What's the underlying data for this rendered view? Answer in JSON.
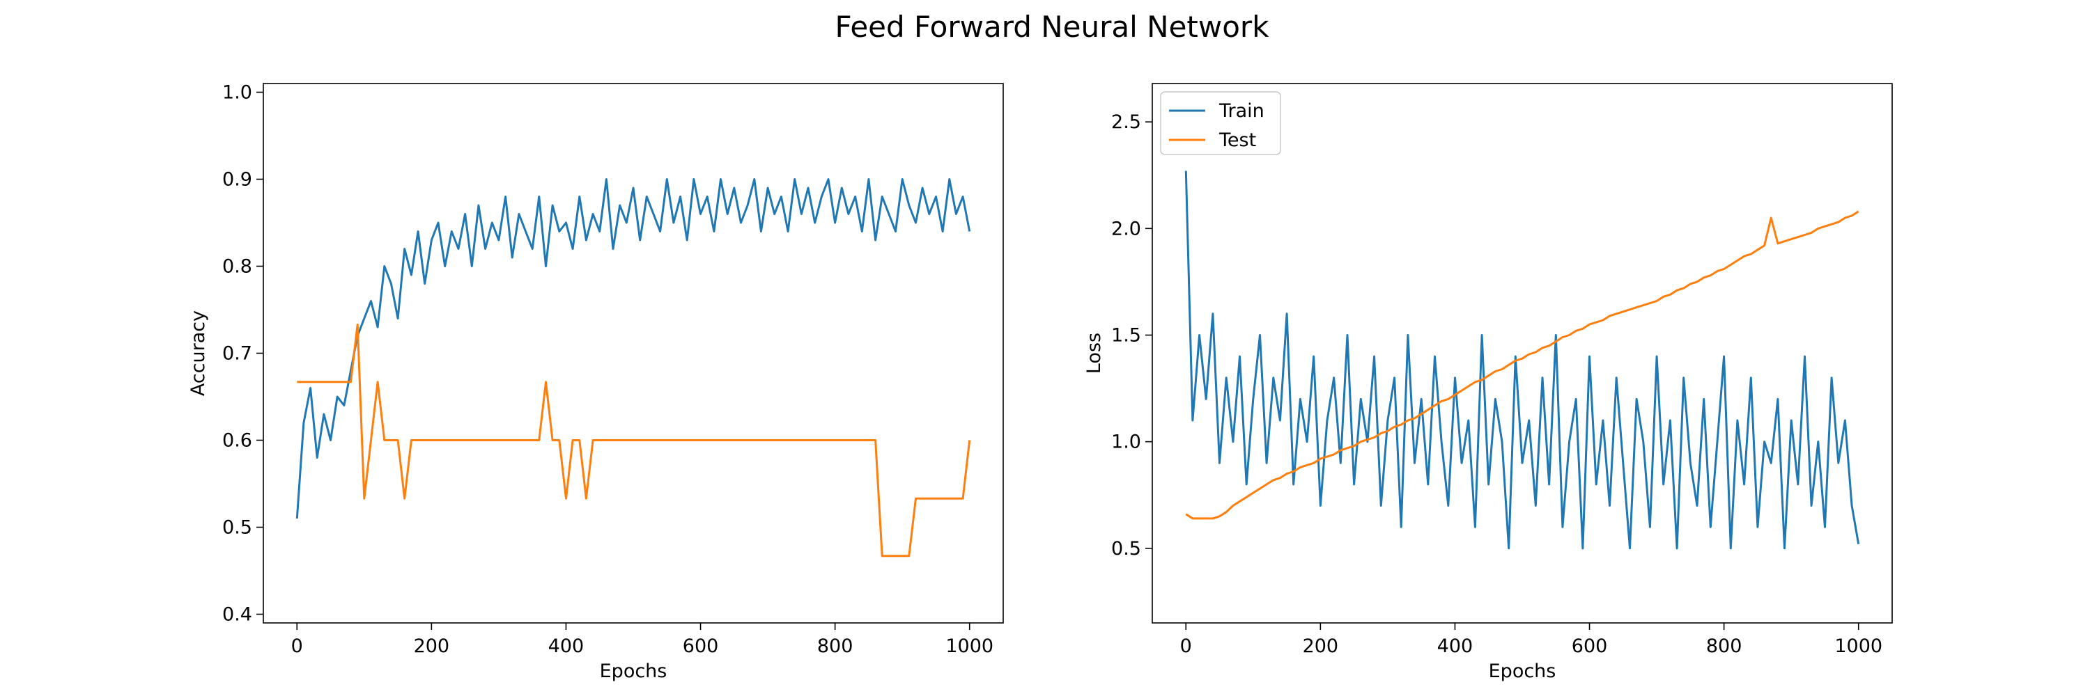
{
  "figure": {
    "title": "Feed Forward Neural Network"
  },
  "colors": {
    "train": "#1f77b4",
    "test": "#ff7f0e",
    "axes": "#000000",
    "legend_border": "#cccccc"
  },
  "chart_data": [
    {
      "type": "line",
      "title": "",
      "xlabel": "Epochs",
      "ylabel": "Accuracy",
      "xlim": [
        -50,
        1050
      ],
      "ylim": [
        0.39,
        1.01
      ],
      "xticks": [
        0,
        200,
        400,
        600,
        800,
        1000
      ],
      "yticks": [
        0.4,
        0.5,
        0.6,
        0.7,
        0.8,
        0.9,
        1.0
      ],
      "xtick_labels": [
        "0",
        "200",
        "400",
        "600",
        "800",
        "1000"
      ],
      "ytick_labels": [
        "0.4",
        "0.5",
        "0.6",
        "0.7",
        "0.8",
        "0.9",
        "1.0"
      ],
      "grid": false,
      "legend": null,
      "series": [
        {
          "color": "#1f77b4",
          "x": [
            0,
            10,
            20,
            30,
            40,
            50,
            60,
            70,
            80,
            90,
            100,
            110,
            120,
            130,
            140,
            150,
            160,
            170,
            180,
            190,
            200,
            210,
            220,
            230,
            240,
            250,
            260,
            270,
            280,
            290,
            300,
            310,
            320,
            330,
            340,
            350,
            360,
            370,
            380,
            390,
            400,
            410,
            420,
            430,
            440,
            450,
            460,
            470,
            480,
            490,
            500,
            510,
            520,
            530,
            540,
            550,
            560,
            570,
            580,
            590,
            600,
            610,
            620,
            630,
            640,
            650,
            660,
            670,
            680,
            690,
            700,
            710,
            720,
            730,
            740,
            750,
            760,
            770,
            780,
            790,
            800,
            810,
            820,
            830,
            840,
            850,
            860,
            870,
            880,
            890,
            900,
            910,
            920,
            930,
            940,
            950,
            960,
            970,
            980,
            990,
            1000
          ],
          "y": [
            0.51,
            0.62,
            0.66,
            0.58,
            0.63,
            0.6,
            0.65,
            0.64,
            0.68,
            0.72,
            0.74,
            0.76,
            0.73,
            0.8,
            0.78,
            0.74,
            0.82,
            0.79,
            0.84,
            0.78,
            0.83,
            0.85,
            0.8,
            0.84,
            0.82,
            0.86,
            0.8,
            0.87,
            0.82,
            0.85,
            0.83,
            0.88,
            0.81,
            0.86,
            0.84,
            0.82,
            0.88,
            0.8,
            0.87,
            0.84,
            0.85,
            0.82,
            0.88,
            0.83,
            0.86,
            0.84,
            0.9,
            0.82,
            0.87,
            0.85,
            0.89,
            0.83,
            0.88,
            0.86,
            0.84,
            0.9,
            0.85,
            0.88,
            0.83,
            0.9,
            0.86,
            0.88,
            0.84,
            0.9,
            0.86,
            0.89,
            0.85,
            0.87,
            0.9,
            0.84,
            0.89,
            0.86,
            0.88,
            0.84,
            0.9,
            0.86,
            0.89,
            0.85,
            0.88,
            0.9,
            0.85,
            0.89,
            0.86,
            0.88,
            0.84,
            0.9,
            0.83,
            0.88,
            0.86,
            0.84,
            0.9,
            0.87,
            0.85,
            0.89,
            0.86,
            0.88,
            0.84,
            0.9,
            0.86,
            0.88,
            0.84
          ]
        },
        {
          "color": "#ff7f0e",
          "x": [
            0,
            10,
            20,
            30,
            40,
            50,
            60,
            70,
            80,
            90,
            100,
            110,
            120,
            130,
            140,
            150,
            160,
            170,
            180,
            190,
            200,
            210,
            220,
            230,
            240,
            250,
            260,
            270,
            280,
            290,
            300,
            310,
            320,
            330,
            340,
            350,
            360,
            370,
            380,
            390,
            400,
            410,
            420,
            430,
            440,
            450,
            460,
            470,
            480,
            490,
            500,
            510,
            520,
            530,
            540,
            550,
            560,
            570,
            580,
            590,
            600,
            610,
            620,
            630,
            640,
            650,
            660,
            670,
            680,
            690,
            700,
            710,
            720,
            730,
            740,
            750,
            760,
            770,
            780,
            790,
            800,
            810,
            820,
            830,
            840,
            850,
            860,
            870,
            880,
            890,
            900,
            910,
            920,
            930,
            940,
            950,
            960,
            970,
            980,
            990,
            1000
          ],
          "y": [
            0.667,
            0.667,
            0.667,
            0.667,
            0.667,
            0.667,
            0.667,
            0.667,
            0.667,
            0.733,
            0.533,
            0.6,
            0.667,
            0.6,
            0.6,
            0.6,
            0.533,
            0.6,
            0.6,
            0.6,
            0.6,
            0.6,
            0.6,
            0.6,
            0.6,
            0.6,
            0.6,
            0.6,
            0.6,
            0.6,
            0.6,
            0.6,
            0.6,
            0.6,
            0.6,
            0.6,
            0.6,
            0.667,
            0.6,
            0.6,
            0.533,
            0.6,
            0.6,
            0.533,
            0.6,
            0.6,
            0.6,
            0.6,
            0.6,
            0.6,
            0.6,
            0.6,
            0.6,
            0.6,
            0.6,
            0.6,
            0.6,
            0.6,
            0.6,
            0.6,
            0.6,
            0.6,
            0.6,
            0.6,
            0.6,
            0.6,
            0.6,
            0.6,
            0.6,
            0.6,
            0.6,
            0.6,
            0.6,
            0.6,
            0.6,
            0.6,
            0.6,
            0.6,
            0.6,
            0.6,
            0.6,
            0.6,
            0.6,
            0.6,
            0.6,
            0.6,
            0.6,
            0.467,
            0.467,
            0.467,
            0.467,
            0.467,
            0.533,
            0.533,
            0.533,
            0.533,
            0.533,
            0.533,
            0.533,
            0.533,
            0.6
          ]
        }
      ]
    },
    {
      "type": "line",
      "title": "",
      "xlabel": "Epochs",
      "ylabel": "Loss",
      "xlim": [
        -50,
        1050
      ],
      "ylim": [
        0.15,
        2.68
      ],
      "xticks": [
        0,
        200,
        400,
        600,
        800,
        1000
      ],
      "yticks": [
        0.5,
        1.0,
        1.5,
        2.0,
        2.5
      ],
      "xtick_labels": [
        "0",
        "200",
        "400",
        "600",
        "800",
        "1000"
      ],
      "ytick_labels": [
        "0.5",
        "1.0",
        "1.5",
        "2.0",
        "2.5"
      ],
      "grid": false,
      "legend": "top-left",
      "series": [
        {
          "name": "Train",
          "color": "#1f77b4",
          "x": [
            0,
            10,
            20,
            30,
            40,
            50,
            60,
            70,
            80,
            90,
            100,
            110,
            120,
            130,
            140,
            150,
            160,
            170,
            180,
            190,
            200,
            210,
            220,
            230,
            240,
            250,
            260,
            270,
            280,
            290,
            300,
            310,
            320,
            330,
            340,
            350,
            360,
            370,
            380,
            390,
            400,
            410,
            420,
            430,
            440,
            450,
            460,
            470,
            480,
            490,
            500,
            510,
            520,
            530,
            540,
            550,
            560,
            570,
            580,
            590,
            600,
            610,
            620,
            630,
            640,
            650,
            660,
            670,
            680,
            690,
            700,
            710,
            720,
            730,
            740,
            750,
            760,
            770,
            780,
            790,
            800,
            810,
            820,
            830,
            840,
            850,
            860,
            870,
            880,
            890,
            900,
            910,
            920,
            930,
            940,
            950,
            960,
            970,
            980,
            990,
            1000
          ],
          "y": [
            2.27,
            1.1,
            1.5,
            1.2,
            1.6,
            0.9,
            1.3,
            1.0,
            1.4,
            0.8,
            1.2,
            1.5,
            0.9,
            1.3,
            1.1,
            1.6,
            0.8,
            1.2,
            1.0,
            1.4,
            0.7,
            1.1,
            1.3,
            0.9,
            1.5,
            0.8,
            1.2,
            1.0,
            1.4,
            0.7,
            1.1,
            1.3,
            0.6,
            1.5,
            0.9,
            1.2,
            0.8,
            1.4,
            1.0,
            0.7,
            1.3,
            0.9,
            1.1,
            0.6,
            1.5,
            0.8,
            1.2,
            1.0,
            0.5,
            1.4,
            0.9,
            1.1,
            0.7,
            1.3,
            0.8,
            1.5,
            0.6,
            1.0,
            1.2,
            0.5,
            1.4,
            0.8,
            1.1,
            0.7,
            1.3,
            0.9,
            0.5,
            1.2,
            1.0,
            0.6,
            1.4,
            0.8,
            1.1,
            0.5,
            1.3,
            0.9,
            0.7,
            1.2,
            0.6,
            1.0,
            1.4,
            0.5,
            1.1,
            0.8,
            1.3,
            0.6,
            1.0,
            0.9,
            1.2,
            0.5,
            1.1,
            0.8,
            1.4,
            0.7,
            1.0,
            0.6,
            1.3,
            0.9,
            1.1,
            0.7,
            0.52
          ]
        },
        {
          "name": "Test",
          "color": "#ff7f0e",
          "x": [
            0,
            10,
            20,
            30,
            40,
            50,
            60,
            70,
            80,
            90,
            100,
            110,
            120,
            130,
            140,
            150,
            160,
            170,
            180,
            190,
            200,
            210,
            220,
            230,
            240,
            250,
            260,
            270,
            280,
            290,
            300,
            310,
            320,
            330,
            340,
            350,
            360,
            370,
            380,
            390,
            400,
            410,
            420,
            430,
            440,
            450,
            460,
            470,
            480,
            490,
            500,
            510,
            520,
            530,
            540,
            550,
            560,
            570,
            580,
            590,
            600,
            610,
            620,
            630,
            640,
            650,
            660,
            670,
            680,
            690,
            700,
            710,
            720,
            730,
            740,
            750,
            760,
            770,
            780,
            790,
            800,
            810,
            820,
            830,
            840,
            850,
            860,
            870,
            880,
            890,
            900,
            910,
            920,
            930,
            940,
            950,
            960,
            970,
            980,
            990,
            1000
          ],
          "y": [
            0.66,
            0.64,
            0.64,
            0.64,
            0.64,
            0.65,
            0.67,
            0.7,
            0.72,
            0.74,
            0.76,
            0.78,
            0.8,
            0.82,
            0.83,
            0.85,
            0.86,
            0.88,
            0.89,
            0.9,
            0.92,
            0.93,
            0.94,
            0.96,
            0.97,
            0.98,
            1.0,
            1.01,
            1.02,
            1.04,
            1.05,
            1.07,
            1.08,
            1.1,
            1.11,
            1.13,
            1.15,
            1.17,
            1.19,
            1.2,
            1.22,
            1.24,
            1.26,
            1.28,
            1.29,
            1.31,
            1.33,
            1.34,
            1.36,
            1.38,
            1.39,
            1.41,
            1.42,
            1.44,
            1.45,
            1.47,
            1.49,
            1.5,
            1.52,
            1.53,
            1.55,
            1.56,
            1.57,
            1.59,
            1.6,
            1.61,
            1.62,
            1.63,
            1.64,
            1.65,
            1.66,
            1.68,
            1.69,
            1.71,
            1.72,
            1.74,
            1.75,
            1.77,
            1.78,
            1.8,
            1.81,
            1.83,
            1.85,
            1.87,
            1.88,
            1.9,
            1.92,
            2.05,
            1.93,
            1.94,
            1.95,
            1.96,
            1.97,
            1.98,
            2.0,
            2.01,
            2.02,
            2.03,
            2.05,
            2.06,
            2.08
          ]
        }
      ]
    }
  ]
}
